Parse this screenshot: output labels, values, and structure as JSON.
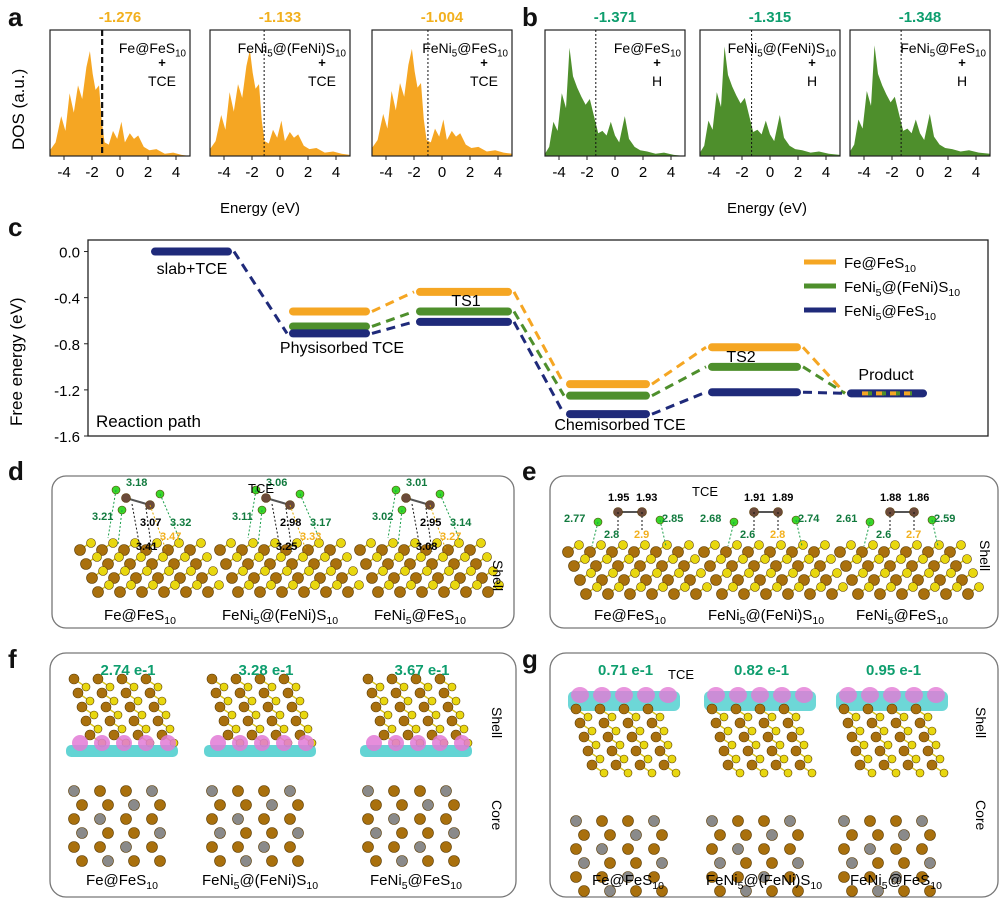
{
  "panel_labels": {
    "a": "a",
    "b": "b",
    "c": "c",
    "d": "d",
    "e": "e",
    "f": "f",
    "g": "g"
  },
  "colors": {
    "orange": "#F5A623",
    "green": "#4E8F2C",
    "navy": "#1F2A7A",
    "teal": "#0E9E6E",
    "darkgreen": "#117A3E",
    "gold": "#F2B01E"
  },
  "chart_data": [
    {
      "type": "area",
      "panel": "a",
      "ylabel": "DOS (a.u.)",
      "xlabel": "Energy (eV)",
      "xlim": [
        -5,
        5
      ],
      "xticks": [
        "-4",
        "-2",
        "0",
        "2",
        "4"
      ],
      "subplots": [
        {
          "d_band_center": "-1.276",
          "label_top": "Fe@FeS",
          "label_sub": "10",
          "plus": "+",
          "adsorbate": "TCE",
          "marker": -1.276,
          "dashed": true
        },
        {
          "d_band_center": "-1.133",
          "label_top": "FeNi5@(FeNi)S",
          "label_sub": "10",
          "plus": "+",
          "adsorbate": "TCE",
          "marker": -1.133,
          "dashed": false
        },
        {
          "d_band_center": "-1.004",
          "label_top": "FeNi5@FeS",
          "label_sub": "10",
          "plus": "+",
          "adsorbate": "TCE",
          "marker": -1.004,
          "dashed": false
        }
      ]
    },
    {
      "type": "area",
      "panel": "b",
      "xlabel": "Energy (eV)",
      "xlim": [
        -5,
        5
      ],
      "xticks": [
        "-4",
        "-2",
        "0",
        "2",
        "4"
      ],
      "subplots": [
        {
          "d_band_center": "-1.371",
          "label_top": "Fe@FeS",
          "label_sub": "10",
          "plus": "+",
          "adsorbate": "H",
          "marker": -1.371
        },
        {
          "d_band_center": "-1.315",
          "label_top": "FeNi5@(FeNi)S",
          "label_sub": "10",
          "plus": "+",
          "adsorbate": "H",
          "marker": -1.315
        },
        {
          "d_band_center": "-1.348",
          "label_top": "FeNi5@FeS",
          "label_sub": "10",
          "plus": "+",
          "adsorbate": "H",
          "marker": -1.348
        }
      ]
    },
    {
      "type": "line",
      "panel": "c",
      "title": "",
      "ylabel": "Free energy (eV)",
      "xlabel": "Reaction path",
      "ylim": [
        -1.6,
        0.1
      ],
      "yticks": [
        "0.0",
        "-0.4",
        "-0.8",
        "-1.2",
        "-1.6"
      ],
      "states": [
        "slab+TCE",
        "Physisorbed TCE",
        "TS1",
        "Chemisorbed TCE",
        "TS2",
        "Product"
      ],
      "series": [
        {
          "name": "Fe@FeS10",
          "values": [
            0.0,
            -0.52,
            -0.35,
            -1.15,
            -0.83,
            -1.23
          ]
        },
        {
          "name": "FeNi5@(FeNi)S10",
          "values": [
            0.0,
            -0.65,
            -0.52,
            -1.25,
            -1.0,
            -1.23
          ]
        },
        {
          "name": "FeNi5@FeS10",
          "values": [
            0.0,
            -0.71,
            -0.61,
            -1.41,
            -1.22,
            -1.23
          ]
        }
      ],
      "legend": [
        {
          "main": "Fe@FeS",
          "sub": "10"
        },
        {
          "main": "FeNi5@(FeNi)S",
          "sub": "10"
        },
        {
          "main": "FeNi5@FeS",
          "sub": "10"
        }
      ],
      "legend_position": "top-right"
    }
  ],
  "panel_d": {
    "tce": "TCE",
    "side": "Shell",
    "structures": [
      {
        "name": "Fe@FeS",
        "sub": "10",
        "green": [
          "3.18",
          "3.21",
          "3.32"
        ],
        "black": [
          "3.07",
          "3.41"
        ],
        "gold": [
          "3.47"
        ]
      },
      {
        "name": "FeNi5@(FeNi)S",
        "sub": "10",
        "green": [
          "3.06",
          "3.11",
          "3.17"
        ],
        "black": [
          "2.98",
          "3.25"
        ],
        "gold": [
          "3.33"
        ]
      },
      {
        "name": "FeNi5@FeS",
        "sub": "10",
        "green": [
          "3.01",
          "3.02",
          "3.14"
        ],
        "black": [
          "2.95",
          "3.08"
        ],
        "gold": [
          "3.27"
        ]
      }
    ]
  },
  "panel_e": {
    "tce": "TCE",
    "side": "Shell",
    "structures": [
      {
        "name": "Fe@FeS",
        "sub": "10",
        "black": [
          "1.95",
          "1.93"
        ],
        "green": [
          "2.77",
          "2.85",
          "2.8"
        ],
        "gold": [
          "2.9"
        ]
      },
      {
        "name": "FeNi5@(FeNi)S",
        "sub": "10",
        "black": [
          "1.91",
          "1.89"
        ],
        "green": [
          "2.68",
          "2.74",
          "2.6"
        ],
        "gold": [
          "2.8"
        ]
      },
      {
        "name": "FeNi5@FeS",
        "sub": "10",
        "black": [
          "1.88",
          "1.86"
        ],
        "green": [
          "2.61",
          "2.59",
          "2.6"
        ],
        "gold": [
          "2.7"
        ]
      }
    ]
  },
  "panel_f": {
    "shell": "Shell",
    "core": "Core",
    "structures": [
      {
        "charge": "2.74 e-1",
        "name": "Fe@FeS",
        "sub": "10"
      },
      {
        "charge": "3.28 e-1",
        "name": "FeNi5@(FeNi)S",
        "sub": "10"
      },
      {
        "charge": "3.67 e-1",
        "name": "FeNi5@FeS",
        "sub": "10"
      }
    ]
  },
  "panel_g": {
    "shell": "Shell",
    "core": "Core",
    "tce": "TCE",
    "structures": [
      {
        "charge": "0.71 e-1",
        "name": "Fe@FeS",
        "sub": "10"
      },
      {
        "charge": "0.82 e-1",
        "name": "FeNi5@(FeNi)S",
        "sub": "10"
      },
      {
        "charge": "0.95 e-1",
        "name": "FeNi5@FeS",
        "sub": "10"
      }
    ]
  }
}
